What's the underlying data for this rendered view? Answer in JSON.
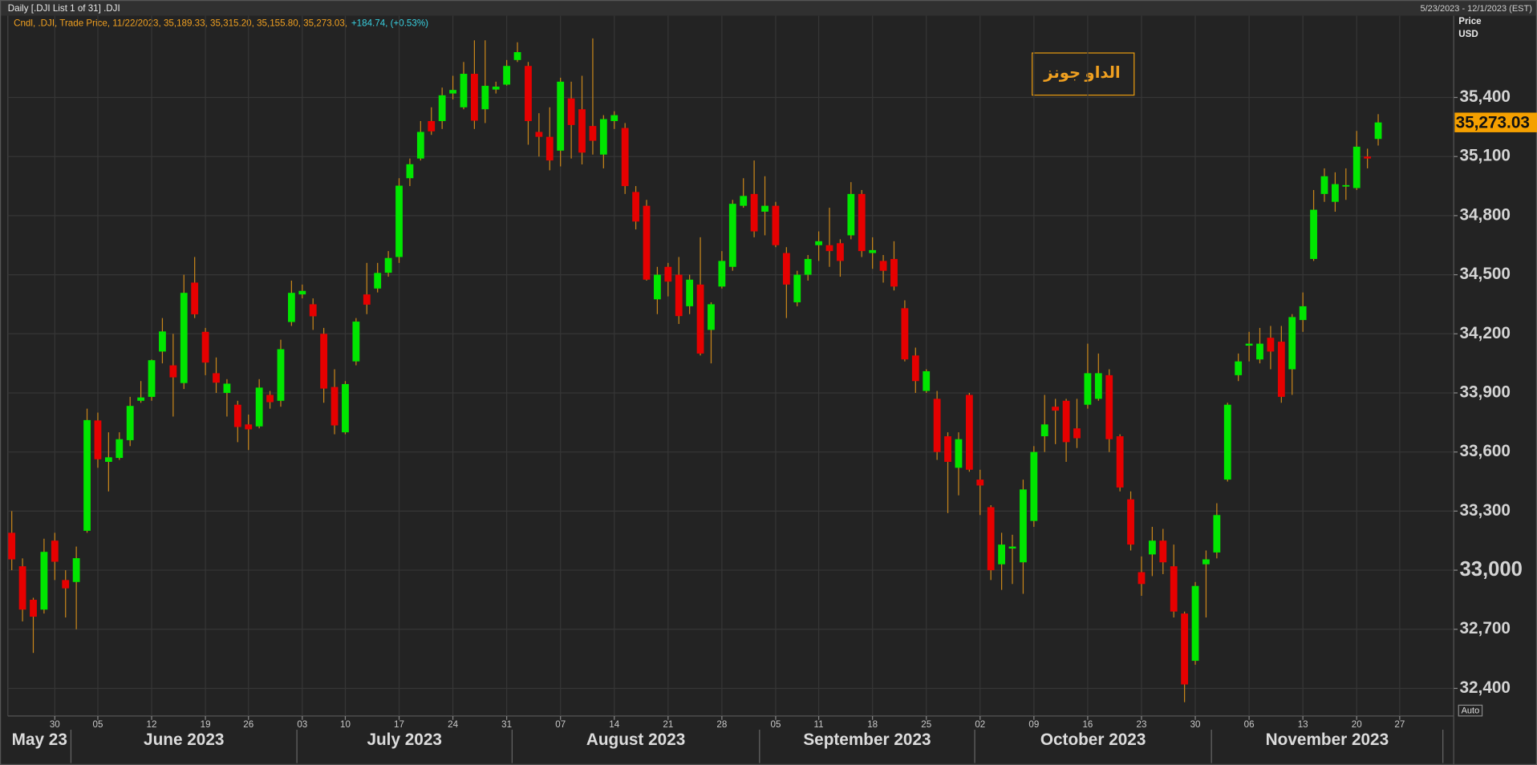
{
  "chart_data": {
    "type": "candlestick",
    "header": "Daily [.DJI List 1 of 31] .DJI",
    "date_range": "5/23/2023 - 12/1/2023 (EST)",
    "legend": "Cndl, .DJI, Trade Price, 11/22/2023, 35,189.33, 35,315.20, 35,155.80, 35,273.03,",
    "change": "+184.74, (+0.53%)",
    "axis_title": "Price",
    "axis_unit": "USD",
    "auto_label": "Auto",
    "annotation": "الداو جونز",
    "last_price": {
      "value": 35273.03,
      "label": "35,273.03"
    },
    "up_color": "#00e600",
    "down_color": "#e60000",
    "wick_color": "#c8861a",
    "grid": true,
    "categories": [
      "2023-05-23",
      "2023-05-24",
      "2023-05-25",
      "2023-05-26",
      "2023-05-30",
      "2023-05-31",
      "2023-06-01",
      "2023-06-02",
      "2023-06-05",
      "2023-06-06",
      "2023-06-07",
      "2023-06-08",
      "2023-06-09",
      "2023-06-12",
      "2023-06-13",
      "2023-06-14",
      "2023-06-15",
      "2023-06-16",
      "2023-06-20",
      "2023-06-21",
      "2023-06-22",
      "2023-06-23",
      "2023-06-26",
      "2023-06-27",
      "2023-06-28",
      "2023-06-29",
      "2023-06-30",
      "2023-07-03",
      "2023-07-05",
      "2023-07-06",
      "2023-07-07",
      "2023-07-10",
      "2023-07-11",
      "2023-07-12",
      "2023-07-13",
      "2023-07-14",
      "2023-07-17",
      "2023-07-18",
      "2023-07-19",
      "2023-07-20",
      "2023-07-21",
      "2023-07-24",
      "2023-07-25",
      "2023-07-26",
      "2023-07-27",
      "2023-07-28",
      "2023-07-31",
      "2023-08-01",
      "2023-08-02",
      "2023-08-03",
      "2023-08-04",
      "2023-08-07",
      "2023-08-08",
      "2023-08-09",
      "2023-08-10",
      "2023-08-11",
      "2023-08-14",
      "2023-08-15",
      "2023-08-16",
      "2023-08-17",
      "2023-08-18",
      "2023-08-21",
      "2023-08-22",
      "2023-08-23",
      "2023-08-24",
      "2023-08-25",
      "2023-08-28",
      "2023-08-29",
      "2023-08-30",
      "2023-08-31",
      "2023-09-01",
      "2023-09-05",
      "2023-09-06",
      "2023-09-07",
      "2023-09-08",
      "2023-09-11",
      "2023-09-12",
      "2023-09-13",
      "2023-09-14",
      "2023-09-15",
      "2023-09-18",
      "2023-09-19",
      "2023-09-20",
      "2023-09-21",
      "2023-09-22",
      "2023-09-25",
      "2023-09-26",
      "2023-09-27",
      "2023-09-28",
      "2023-09-29",
      "2023-10-02",
      "2023-10-03",
      "2023-10-04",
      "2023-10-05",
      "2023-10-06",
      "2023-10-09",
      "2023-10-10",
      "2023-10-11",
      "2023-10-12",
      "2023-10-13",
      "2023-10-16",
      "2023-10-17",
      "2023-10-18",
      "2023-10-19",
      "2023-10-20",
      "2023-10-23",
      "2023-10-24",
      "2023-10-25",
      "2023-10-26",
      "2023-10-27",
      "2023-10-30",
      "2023-10-31",
      "2023-11-01",
      "2023-11-02",
      "2023-11-03",
      "2023-11-06",
      "2023-11-07",
      "2023-11-08",
      "2023-11-09",
      "2023-11-10",
      "2023-11-13",
      "2023-11-14",
      "2023-11-15",
      "2023-11-16",
      "2023-11-17",
      "2023-11-20",
      "2023-11-21",
      "2023-11-22"
    ],
    "open": [
      33190,
      33020,
      32850,
      32800,
      33150,
      32950,
      32940,
      33200,
      33760,
      33550,
      33570,
      33660,
      33860,
      33880,
      34110,
      34040,
      33950,
      34460,
      34210,
      34000,
      33900,
      33840,
      33740,
      33730,
      33890,
      33860,
      34260,
      34400,
      34350,
      34200,
      33930,
      33700,
      34060,
      34400,
      34430,
      34510,
      34590,
      34990,
      35090,
      35280,
      35280,
      35420,
      35350,
      35520,
      35340,
      35440,
      35465,
      35590,
      35560,
      35225,
      35200,
      35130,
      35395,
      35340,
      35255,
      35110,
      35280,
      35245,
      34920,
      34850,
      34375,
      34540,
      34500,
      34340,
      34450,
      34220,
      34440,
      34540,
      34850,
      34910,
      34820,
      34850,
      34610,
      34360,
      34500,
      34650,
      34650,
      34660,
      34700,
      34910,
      34610,
      34570,
      34580,
      34330,
      34090,
      33910,
      33870,
      33680,
      33520,
      33890,
      33460,
      33320,
      33030,
      33110,
      33040,
      33250,
      33680,
      33830,
      33860,
      33720,
      33840,
      33870,
      33990,
      33680,
      33360,
      32990,
      33080,
      33150,
      33020,
      32780,
      32540,
      33030,
      33090,
      33460,
      33990,
      34140,
      34070,
      34180,
      34160,
      34020,
      34270,
      34580,
      34910,
      34870,
      34950,
      34940,
      35100,
      35189.33
    ],
    "high": [
      33300,
      33060,
      32860,
      33160,
      33190,
      33000,
      33120,
      33820,
      33800,
      33700,
      33700,
      33880,
      33960,
      34070,
      34280,
      34200,
      34500,
      34590,
      34230,
      34080,
      33970,
      33860,
      33790,
      33970,
      33910,
      34170,
      34470,
      34450,
      34380,
      34230,
      34020,
      33960,
      34280,
      34560,
      34560,
      34620,
      34990,
      35090,
      35280,
      35350,
      35450,
      35510,
      35580,
      35690,
      35690,
      35480,
      35590,
      35680,
      35580,
      35320,
      35350,
      35500,
      35480,
      35510,
      35700,
      35310,
      35330,
      35270,
      34950,
      34880,
      34540,
      34560,
      34590,
      34500,
      34690,
      34360,
      34620,
      34880,
      34990,
      35080,
      35000,
      34870,
      34640,
      34520,
      34600,
      34720,
      34840,
      34680,
      34970,
      34930,
      34690,
      34600,
      34670,
      34370,
      34130,
      34020,
      33910,
      33700,
      33700,
      33900,
      33510,
      33330,
      33190,
      33180,
      33460,
      33630,
      33890,
      33870,
      33870,
      33870,
      34150,
      34100,
      34020,
      33690,
      33400,
      33070,
      33220,
      33210,
      33130,
      32790,
      32940,
      33100,
      33340,
      33850,
      34100,
      34210,
      34230,
      34240,
      34240,
      34300,
      34410,
      34930,
      35040,
      35020,
      35040,
      35230,
      35140,
      35315.2
    ],
    "low": [
      33000,
      32740,
      32580,
      32780,
      32950,
      32760,
      32700,
      33190,
      33520,
      33400,
      33560,
      33630,
      33850,
      33860,
      34050,
      33780,
      33920,
      34280,
      33990,
      33900,
      33780,
      33650,
      33610,
      33720,
      33820,
      33830,
      34240,
      34380,
      34220,
      33850,
      33690,
      33690,
      34040,
      34300,
      34410,
      34490,
      34560,
      34950,
      35080,
      35210,
      35240,
      35390,
      35340,
      35240,
      35270,
      35420,
      35460,
      35580,
      35160,
      35100,
      35030,
      35050,
      35090,
      35060,
      35110,
      35040,
      35240,
      34910,
      34730,
      34470,
      34300,
      34390,
      34250,
      34300,
      34090,
      34050,
      34430,
      34520,
      34840,
      34690,
      34700,
      34640,
      34280,
      34340,
      34470,
      34570,
      34540,
      34490,
      34680,
      34590,
      34530,
      34460,
      34420,
      34060,
      33900,
      33900,
      33560,
      33290,
      33380,
      33500,
      33280,
      32950,
      32900,
      32930,
      32880,
      33220,
      33600,
      33640,
      33550,
      33620,
      33820,
      33860,
      33600,
      33400,
      33100,
      32870,
      32970,
      32980,
      32760,
      32330,
      32520,
      32760,
      33060,
      33450,
      33960,
      34060,
      34050,
      34020,
      33850,
      33890,
      34210,
      34570,
      34870,
      34820,
      34880,
      34930,
      35040,
      35155.8
    ],
    "close": [
      33055,
      32800,
      32764,
      33093,
      33043,
      32908,
      33061,
      33762,
      33563,
      33573,
      33665,
      33834,
      33877,
      34066,
      34212,
      33979,
      34408,
      34299,
      34054,
      33952,
      33947,
      33727,
      33715,
      33927,
      33853,
      34122,
      34408,
      34418,
      34289,
      33922,
      33735,
      33945,
      34262,
      34348,
      34509,
      34585,
      34952,
      35061,
      35225,
      35228,
      35411,
      35438,
      35520,
      35282,
      35459,
      35455,
      35560,
      35630,
      35280,
      35200,
      35080,
      35480,
      35260,
      35120,
      35180,
      35290,
      35310,
      34950,
      34770,
      34475,
      34500,
      34465,
      34290,
      34475,
      34100,
      34350,
      34570,
      34860,
      34900,
      34720,
      34850,
      34650,
      34450,
      34500,
      34580,
      34670,
      34620,
      34570,
      34910,
      34620,
      34625,
      34520,
      34440,
      34070,
      33960,
      34010,
      33600,
      33550,
      33665,
      33510,
      33430,
      33000,
      33130,
      33120,
      33410,
      33600,
      33740,
      33810,
      33650,
      33670,
      34000,
      34000,
      33665,
      33420,
      33130,
      32930,
      33150,
      33040,
      32790,
      32420,
      32920,
      33055,
      33280,
      33840,
      34060,
      34150,
      34150,
      34110,
      33880,
      34285,
      34340,
      34830,
      35000,
      34960,
      34955,
      35150,
      35090,
      35273.03
    ],
    "ylim": [
      32260,
      35815
    ],
    "yticks": [
      {
        "value": 32400,
        "label": "32,400"
      },
      {
        "value": 32700,
        "label": "32,700"
      },
      {
        "value": 33000,
        "label": "33,000"
      },
      {
        "value": 33300,
        "label": "33,300"
      },
      {
        "value": 33600,
        "label": "33,600"
      },
      {
        "value": 33900,
        "label": "33,900"
      },
      {
        "value": 34200,
        "label": "34,200"
      },
      {
        "value": 34500,
        "label": "34,500"
      },
      {
        "value": 34800,
        "label": "34,800"
      },
      {
        "value": 35100,
        "label": "35,100"
      },
      {
        "value": 35400,
        "label": "35,400"
      }
    ],
    "xticks": [
      {
        "value": "2023-05-30",
        "label": "30"
      },
      {
        "value": "2023-06-05",
        "label": "05"
      },
      {
        "value": "2023-06-12",
        "label": "12"
      },
      {
        "value": "2023-06-19",
        "label": "19"
      },
      {
        "value": "2023-06-26",
        "label": "26"
      },
      {
        "value": "2023-07-03",
        "label": "03"
      },
      {
        "value": "2023-07-10",
        "label": "10"
      },
      {
        "value": "2023-07-17",
        "label": "17"
      },
      {
        "value": "2023-07-24",
        "label": "24"
      },
      {
        "value": "2023-07-31",
        "label": "31"
      },
      {
        "value": "2023-08-07",
        "label": "07"
      },
      {
        "value": "2023-08-14",
        "label": "14"
      },
      {
        "value": "2023-08-21",
        "label": "21"
      },
      {
        "value": "2023-08-28",
        "label": "28"
      },
      {
        "value": "2023-09-05",
        "label": "05"
      },
      {
        "value": "2023-09-11",
        "label": "11"
      },
      {
        "value": "2023-09-18",
        "label": "18"
      },
      {
        "value": "2023-09-25",
        "label": "25"
      },
      {
        "value": "2023-10-02",
        "label": "02"
      },
      {
        "value": "2023-10-09",
        "label": "09"
      },
      {
        "value": "2023-10-16",
        "label": "16"
      },
      {
        "value": "2023-10-23",
        "label": "23"
      },
      {
        "value": "2023-10-30",
        "label": "30"
      },
      {
        "value": "2023-11-06",
        "label": "06"
      },
      {
        "value": "2023-11-13",
        "label": "13"
      },
      {
        "value": "2023-11-20",
        "label": "20"
      },
      {
        "value": "2023-11-27",
        "label": "27"
      }
    ],
    "month_labels": [
      {
        "value": "2023-05-23",
        "label": "May 23"
      },
      {
        "value": "2023-06-01",
        "label": "June 2023"
      },
      {
        "value": "2023-07-01",
        "label": "July 2023"
      },
      {
        "value": "2023-08-01",
        "label": "August 2023"
      },
      {
        "value": "2023-09-01",
        "label": "September 2023"
      },
      {
        "value": "2023-10-01",
        "label": "October 2023"
      },
      {
        "value": "2023-11-01",
        "label": "November 2023"
      }
    ]
  }
}
